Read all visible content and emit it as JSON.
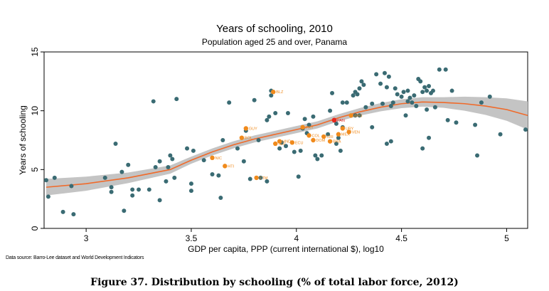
{
  "chart_data": {
    "type": "scatter",
    "title": "Years of schooling, 2010",
    "subtitle": "Population aged 25 and over, Panama",
    "xlabel": "GDP per capita, PPP (current international $), log10",
    "ylabel": "Years of schooling",
    "xlim": [
      2.8,
      5.1
    ],
    "ylim": [
      0,
      15
    ],
    "xticks": [
      "3",
      "3.5",
      "4",
      "4.5",
      "5"
    ],
    "yticks": [
      "0",
      "5",
      "10",
      "15"
    ],
    "grid": false,
    "legend": "none",
    "colors": {
      "points": "#3a6b73",
      "labeled": "#f08a1c",
      "highlight": "#e8281e",
      "fit": "#f06a2a",
      "band": "#c4c4c4"
    },
    "points": [
      [
        2.81,
        4.1
      ],
      [
        2.82,
        2.7
      ],
      [
        2.85,
        4.3
      ],
      [
        2.89,
        1.4
      ],
      [
        2.93,
        3.6
      ],
      [
        2.94,
        1.2
      ],
      [
        3.09,
        4.3
      ],
      [
        3.12,
        3.1
      ],
      [
        3.12,
        3.5
      ],
      [
        3.14,
        7.2
      ],
      [
        3.17,
        4.8
      ],
      [
        3.18,
        1.5
      ],
      [
        3.2,
        5.4
      ],
      [
        3.22,
        2.8
      ],
      [
        3.22,
        3.3
      ],
      [
        3.25,
        3.3
      ],
      [
        3.3,
        3.3
      ],
      [
        3.32,
        10.8
      ],
      [
        3.33,
        5.2
      ],
      [
        3.35,
        2.4
      ],
      [
        3.35,
        5.7
      ],
      [
        3.38,
        4.0
      ],
      [
        3.39,
        5.2
      ],
      [
        3.4,
        6.2
      ],
      [
        3.41,
        5.9
      ],
      [
        3.42,
        4.3
      ],
      [
        3.43,
        11.0
      ],
      [
        3.48,
        6.8
      ],
      [
        3.5,
        3.2
      ],
      [
        3.5,
        3.8
      ],
      [
        3.51,
        6.6
      ],
      [
        3.56,
        5.8
      ],
      [
        3.6,
        4.6
      ],
      [
        3.63,
        4.5
      ],
      [
        3.64,
        2.6
      ],
      [
        3.65,
        7.5
      ],
      [
        3.68,
        10.7
      ],
      [
        3.72,
        6.8
      ],
      [
        3.75,
        5.7
      ],
      [
        3.76,
        8.3
      ],
      [
        3.78,
        4.2
      ],
      [
        3.8,
        10.9
      ],
      [
        3.82,
        7.5
      ],
      [
        3.83,
        4.3
      ],
      [
        3.86,
        4.0
      ],
      [
        3.86,
        9.2
      ],
      [
        3.87,
        9.5
      ],
      [
        3.88,
        11.3
      ],
      [
        3.88,
        11.7
      ],
      [
        3.9,
        9.8
      ],
      [
        3.92,
        6.8
      ],
      [
        3.93,
        7.3
      ],
      [
        3.95,
        7.0
      ],
      [
        3.96,
        9.8
      ],
      [
        3.99,
        6.5
      ],
      [
        4.01,
        4.4
      ],
      [
        4.02,
        6.6
      ],
      [
        4.03,
        8.5
      ],
      [
        4.04,
        9.3
      ],
      [
        4.05,
        8.1
      ],
      [
        4.06,
        8.8
      ],
      [
        4.08,
        9.5
      ],
      [
        4.09,
        6.2
      ],
      [
        4.1,
        5.9
      ],
      [
        4.12,
        6.2
      ],
      [
        4.15,
        8.0
      ],
      [
        4.16,
        10.0
      ],
      [
        4.17,
        11.5
      ],
      [
        4.19,
        8.9
      ],
      [
        4.19,
        7.2
      ],
      [
        4.2,
        7.7
      ],
      [
        4.21,
        6.6
      ],
      [
        4.22,
        10.7
      ],
      [
        4.22,
        8.6
      ],
      [
        4.24,
        10.7
      ],
      [
        4.27,
        11.3
      ],
      [
        4.28,
        11.6
      ],
      [
        4.28,
        9.6
      ],
      [
        4.29,
        11.4
      ],
      [
        4.3,
        11.9
      ],
      [
        4.3,
        9.6
      ],
      [
        4.31,
        12.5
      ],
      [
        4.32,
        12.2
      ],
      [
        4.33,
        10.3
      ],
      [
        4.36,
        10.6
      ],
      [
        4.38,
        13.1
      ],
      [
        4.4,
        12.3
      ],
      [
        4.41,
        10.6
      ],
      [
        4.42,
        13.2
      ],
      [
        4.43,
        12.0
      ],
      [
        4.44,
        12.9
      ],
      [
        4.45,
        10.4
      ],
      [
        4.46,
        10.7
      ],
      [
        4.47,
        11.9
      ],
      [
        4.48,
        11.4
      ],
      [
        4.5,
        11.2
      ],
      [
        4.51,
        11.6
      ],
      [
        4.52,
        9.6
      ],
      [
        4.53,
        10.8
      ],
      [
        4.53,
        11.7
      ],
      [
        4.54,
        11.1
      ],
      [
        4.55,
        10.7
      ],
      [
        4.56,
        11.3
      ],
      [
        4.57,
        10.4
      ],
      [
        4.58,
        12.7
      ],
      [
        4.59,
        12.5
      ],
      [
        4.6,
        11.6
      ],
      [
        4.61,
        12.0
      ],
      [
        4.62,
        11.7
      ],
      [
        4.62,
        10.1
      ],
      [
        4.63,
        12.1
      ],
      [
        4.64,
        11.5
      ],
      [
        4.65,
        11.7
      ],
      [
        4.66,
        10.3
      ],
      [
        4.68,
        13.5
      ],
      [
        4.71,
        13.5
      ],
      [
        4.72,
        9.2
      ],
      [
        4.74,
        11.7
      ],
      [
        4.76,
        9.0
      ],
      [
        4.85,
        8.8
      ],
      [
        4.86,
        6.2
      ],
      [
        4.88,
        10.7
      ],
      [
        4.92,
        11.2
      ],
      [
        4.97,
        8.0
      ],
      [
        5.09,
        8.4
      ],
      [
        4.6,
        6.8
      ],
      [
        4.63,
        7.7
      ],
      [
        4.43,
        7.2
      ],
      [
        4.45,
        7.4
      ],
      [
        4.36,
        8.6
      ]
    ],
    "labeled_points": [
      {
        "x": 3.89,
        "y": 11.6,
        "label": "BLZ"
      },
      {
        "x": 3.76,
        "y": 8.5,
        "label": "GUY"
      },
      {
        "x": 3.74,
        "y": 7.7,
        "label": "BOL"
      },
      {
        "x": 3.92,
        "y": 7.4,
        "label": "HND"
      },
      {
        "x": 3.9,
        "y": 7.2,
        "label": "SLV"
      },
      {
        "x": 3.98,
        "y": 7.3,
        "label": "ECU"
      },
      {
        "x": 4.03,
        "y": 8.6,
        "label": "PRY"
      },
      {
        "x": 4.06,
        "y": 7.9,
        "label": "COL"
      },
      {
        "x": 4.08,
        "y": 7.5,
        "label": "DOM"
      },
      {
        "x": 4.13,
        "y": 7.8,
        "label": "CRI"
      },
      {
        "x": 4.16,
        "y": 7.4,
        "label": "BRA"
      },
      {
        "x": 4.22,
        "y": 8.5,
        "label": "URY"
      },
      {
        "x": 4.25,
        "y": 8.2,
        "label": "VEN"
      },
      {
        "x": 4.26,
        "y": 9.6,
        "label": "ARG"
      },
      {
        "x": 4.2,
        "y": 8.0,
        "label": "MEX"
      },
      {
        "x": 3.6,
        "y": 6.0,
        "label": "NIC"
      },
      {
        "x": 3.66,
        "y": 5.3,
        "label": "HTI"
      },
      {
        "x": 3.81,
        "y": 4.3,
        "label": "CTM"
      }
    ],
    "highlight": {
      "x": 4.18,
      "y": 9.2,
      "label": "PAN"
    },
    "fit_line": [
      [
        2.81,
        3.5
      ],
      [
        3.0,
        3.8
      ],
      [
        3.2,
        4.3
      ],
      [
        3.4,
        5.0
      ],
      [
        3.5,
        5.8
      ],
      [
        3.6,
        6.5
      ],
      [
        3.7,
        7.1
      ],
      [
        3.8,
        7.6
      ],
      [
        3.9,
        8.0
      ],
      [
        4.0,
        8.4
      ],
      [
        4.1,
        8.8
      ],
      [
        4.2,
        9.4
      ],
      [
        4.3,
        9.9
      ],
      [
        4.4,
        10.3
      ],
      [
        4.5,
        10.6
      ],
      [
        4.6,
        10.75
      ],
      [
        4.7,
        10.7
      ],
      [
        4.8,
        10.6
      ],
      [
        4.9,
        10.4
      ],
      [
        5.0,
        10.1
      ],
      [
        5.1,
        9.6
      ]
    ],
    "band_halfwidth": [
      0.7,
      0.6,
      0.45,
      0.35,
      0.3,
      0.3,
      0.3,
      0.3,
      0.3,
      0.3,
      0.3,
      0.3,
      0.32,
      0.35,
      0.38,
      0.4,
      0.45,
      0.6,
      0.75,
      0.95,
      1.2
    ]
  },
  "source_note": "Data source: Barro-Lee dataset and World Development Indicators",
  "caption": "Figure 37. Distribution by schooling (% of total labor force, 2012)"
}
